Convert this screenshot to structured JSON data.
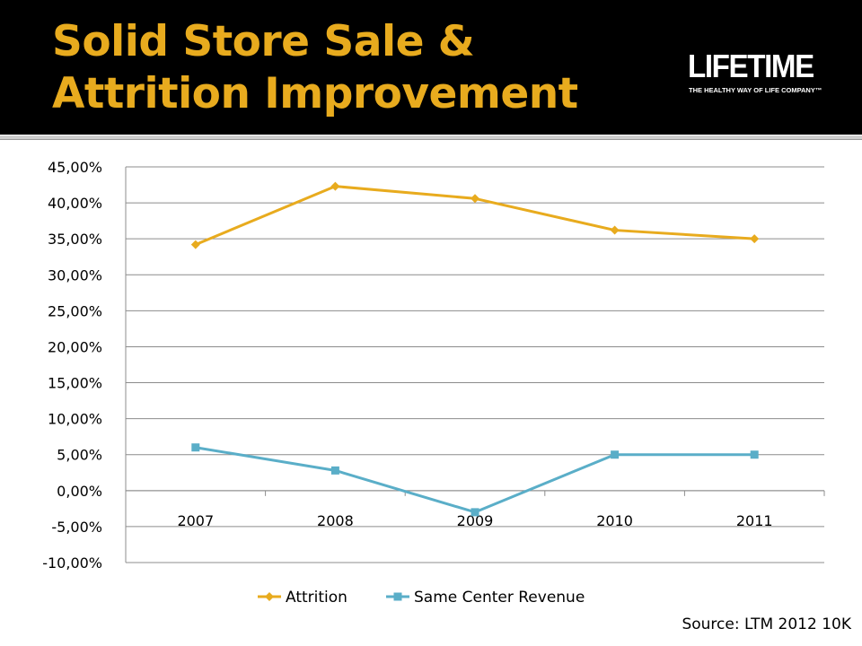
{
  "slide": {
    "title": "Solid Store Sale & Attrition Improvement",
    "logo": {
      "wordmark": "LIFETIME",
      "tagline": "THE HEALTHY WAY OF LIFE COMPANY™"
    },
    "source": "Source: LTM 2012 10K"
  },
  "colors": {
    "header_bg": "#000000",
    "title": "#e8ab1e",
    "attrition": "#e8ab1e",
    "same_center": "#5aaec8",
    "grid": "#8c8c8c"
  },
  "chart_data": {
    "type": "line",
    "title": "",
    "xlabel": "",
    "ylabel": "",
    "categories": [
      "2007",
      "2008",
      "2009",
      "2010",
      "2011"
    ],
    "ylim": [
      -10,
      45
    ],
    "ytick_step": 5,
    "y_tick_labels": [
      "45,00%",
      "40,00%",
      "35,00%",
      "30,00%",
      "25,00%",
      "20,00%",
      "15,00%",
      "10,00%",
      "5,00%",
      "0,00%",
      "-5,00%",
      "-10,00%"
    ],
    "grid": true,
    "legend_position": "bottom",
    "series": [
      {
        "name": "Attrition",
        "marker": "diamond",
        "color": "#e8ab1e",
        "values": [
          34.2,
          42.3,
          40.6,
          36.2,
          35.0
        ]
      },
      {
        "name": "Same Center Revenue",
        "marker": "square",
        "color": "#5aaec8",
        "values": [
          6.0,
          2.8,
          -3.0,
          5.0,
          5.0
        ]
      }
    ]
  }
}
